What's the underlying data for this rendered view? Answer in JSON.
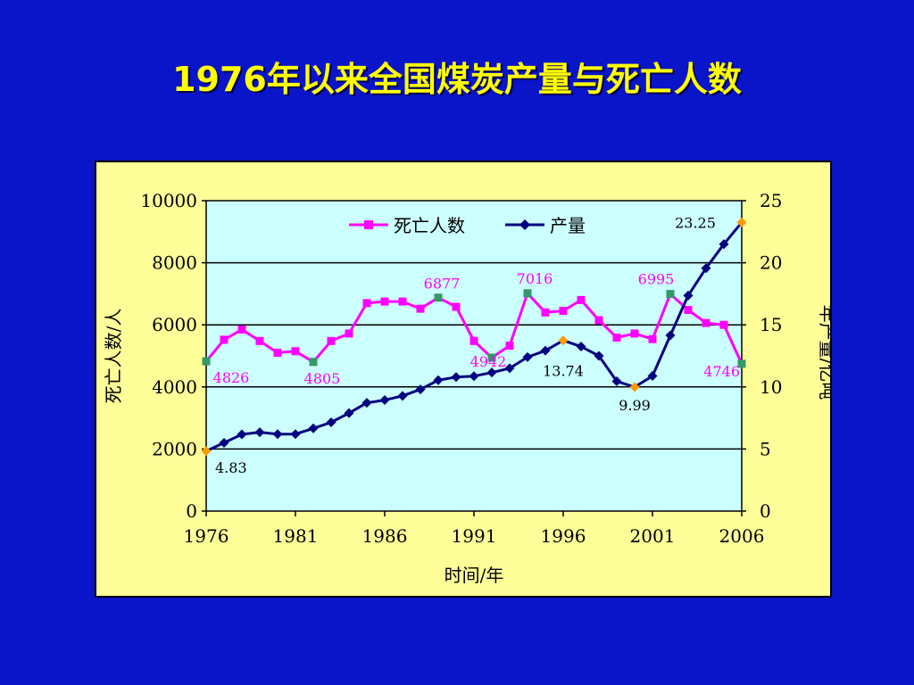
{
  "title": "1976年以来全国煤炭产量与死亡人数",
  "chart_data": {
    "type": "line",
    "xlabel": "时间/年",
    "ylabel_left": "死亡人数/人",
    "ylabel_right": "年产量/亿吨",
    "xlim": [
      1976,
      2006
    ],
    "ylim_left": [
      0,
      10000
    ],
    "ylim_right": [
      0,
      25
    ],
    "xticks": [
      "1976",
      "1981",
      "1986",
      "1991",
      "1996",
      "2001",
      "2006"
    ],
    "yticks_left": [
      "0",
      "2000",
      "4000",
      "6000",
      "8000",
      "10000"
    ],
    "yticks_right": [
      "0",
      "5",
      "10",
      "15",
      "20",
      "25"
    ],
    "grid": "horizontal",
    "legend_placement": "top-center",
    "x": [
      1976,
      1977,
      1978,
      1979,
      1980,
      1981,
      1982,
      1983,
      1984,
      1985,
      1986,
      1987,
      1988,
      1989,
      1990,
      1991,
      1992,
      1993,
      1994,
      1995,
      1996,
      1997,
      1998,
      1999,
      2000,
      2001,
      2002,
      2003,
      2004,
      2005,
      2006
    ],
    "series": [
      {
        "name": "死亡人数",
        "axis": "left",
        "color": "#ff00ff",
        "marker": "square",
        "values": [
          4826,
          5520,
          5850,
          5480,
          5100,
          5150,
          4805,
          5480,
          5720,
          6700,
          6750,
          6750,
          6520,
          6877,
          6580,
          5480,
          4942,
          5330,
          7016,
          6400,
          6450,
          6800,
          6150,
          5590,
          5720,
          5540,
          6995,
          6480,
          6060,
          6000,
          4746
        ]
      },
      {
        "name": "产量",
        "axis": "right",
        "color": "#000080",
        "marker": "diamond",
        "values": [
          4.83,
          5.5,
          6.18,
          6.35,
          6.2,
          6.2,
          6.66,
          7.15,
          7.89,
          8.72,
          8.94,
          9.28,
          9.8,
          10.54,
          10.79,
          10.87,
          11.16,
          11.5,
          12.4,
          12.92,
          13.74,
          13.25,
          12.5,
          10.45,
          9.99,
          10.88,
          14.15,
          17.36,
          19.56,
          21.5,
          23.25
        ]
      }
    ],
    "annotations": [
      {
        "series": "死亡人数",
        "x": 1976,
        "text": "4826"
      },
      {
        "series": "死亡人数",
        "x": 1982,
        "text": "4805"
      },
      {
        "series": "死亡人数",
        "x": 1989,
        "text": "6877"
      },
      {
        "series": "死亡人数",
        "x": 1992,
        "text": "4942"
      },
      {
        "series": "死亡人数",
        "x": 1994,
        "text": "7016"
      },
      {
        "series": "死亡人数",
        "x": 2002,
        "text": "6995"
      },
      {
        "series": "死亡人数",
        "x": 2006,
        "text": "4746"
      },
      {
        "series": "产量",
        "x": 1976,
        "text": "4.83"
      },
      {
        "series": "产量",
        "x": 1996,
        "text": "13.74"
      },
      {
        "series": "产量",
        "x": 2000,
        "text": "9.99"
      },
      {
        "series": "产量",
        "x": 2006,
        "text": "23.25"
      }
    ],
    "highlight_colors": {
      "死亡人数": "#339966",
      "产量": "#ff9900"
    }
  }
}
